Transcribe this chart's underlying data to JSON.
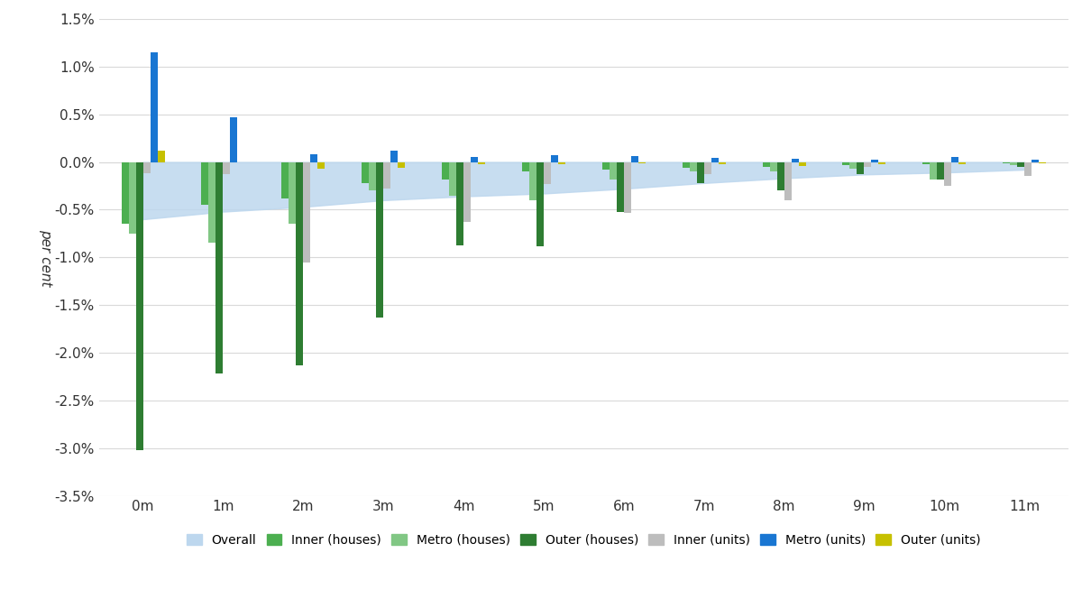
{
  "x_labels": [
    "0m",
    "1m",
    "2m",
    "3m",
    "4m",
    "5m",
    "6m",
    "7m",
    "8m",
    "9m",
    "10m",
    "11m"
  ],
  "series_order": [
    "Inner (houses)",
    "Metro (houses)",
    "Outer (houses)",
    "Inner (units)",
    "Metro (units)",
    "Outer (units)"
  ],
  "series": {
    "Inner (houses)": {
      "values": [
        -0.65,
        -0.45,
        -0.38,
        -0.22,
        -0.18,
        -0.1,
        -0.08,
        -0.06,
        -0.05,
        -0.03,
        -0.02,
        -0.01
      ],
      "color": "#4CAF50"
    },
    "Metro (houses)": {
      "values": [
        -0.75,
        -0.85,
        -0.65,
        -0.3,
        -0.35,
        -0.4,
        -0.18,
        -0.1,
        -0.1,
        -0.07,
        -0.18,
        -0.03
      ],
      "color": "#81C784"
    },
    "Outer (houses)": {
      "values": [
        -3.02,
        -2.22,
        -2.13,
        -1.63,
        -0.87,
        -0.88,
        -0.52,
        -0.22,
        -0.3,
        -0.13,
        -0.18,
        -0.05
      ],
      "color": "#2E7D32"
    },
    "Inner (units)": {
      "values": [
        -0.12,
        -0.13,
        -1.05,
        -0.28,
        -0.63,
        -0.23,
        -0.53,
        -0.13,
        -0.4,
        -0.05,
        -0.25,
        -0.15
      ],
      "color": "#BDBDBD"
    },
    "Metro (units)": {
      "values": [
        1.15,
        0.47,
        0.08,
        0.12,
        0.05,
        0.07,
        0.06,
        0.04,
        0.03,
        0.02,
        0.05,
        0.02
      ],
      "color": "#1976D2"
    },
    "Outer (units)": {
      "values": [
        0.12,
        0.0,
        -0.07,
        -0.06,
        -0.02,
        -0.02,
        -0.01,
        -0.02,
        -0.04,
        -0.02,
        -0.02,
        -0.01
      ],
      "color": "#C6C000"
    }
  },
  "overall_band_bottom": [
    -0.6,
    -0.52,
    -0.47,
    -0.4,
    -0.36,
    -0.33,
    -0.28,
    -0.22,
    -0.17,
    -0.13,
    -0.11,
    -0.08
  ],
  "overall_band_top": [
    0.0,
    0.0,
    0.0,
    0.0,
    0.0,
    0.0,
    0.0,
    0.0,
    0.0,
    0.0,
    0.0,
    0.0
  ],
  "overall_color": "#BDD7EE",
  "ylabel": "per cent",
  "ylim": [
    -3.5,
    1.5
  ],
  "ytick_vals": [
    -3.5,
    -3.0,
    -2.5,
    -2.0,
    -1.5,
    -1.0,
    -0.5,
    0.0,
    0.5,
    1.0,
    1.5
  ],
  "background_color": "#FFFFFF",
  "grid_color": "#D9D9D9",
  "bar_width": 0.09,
  "legend_labels": [
    "Overall",
    "Inner (houses)",
    "Metro (houses)",
    "Outer (houses)",
    "Inner (units)",
    "Metro (units)",
    "Outer (units)"
  ]
}
